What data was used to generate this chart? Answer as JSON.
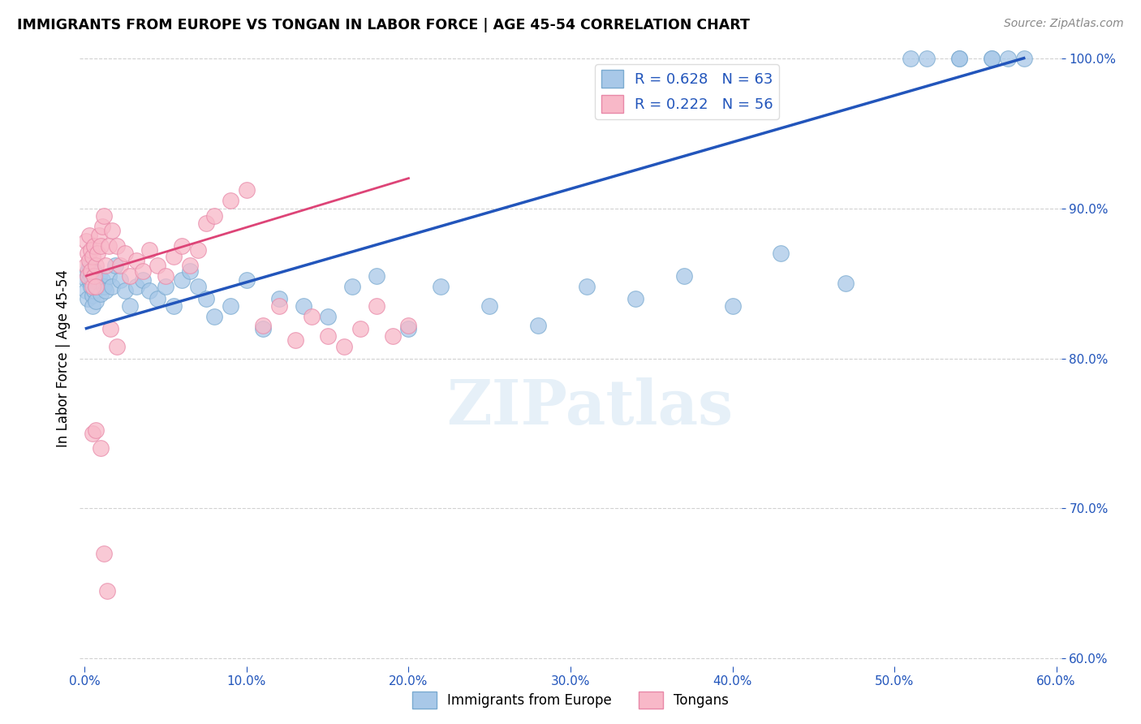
{
  "title": "IMMIGRANTS FROM EUROPE VS TONGAN IN LABOR FORCE | AGE 45-54 CORRELATION CHART",
  "source": "Source: ZipAtlas.com",
  "ylabel": "In Labor Force | Age 45-54",
  "xlim": [
    -0.003,
    0.603
  ],
  "ylim": [
    0.595,
    1.005
  ],
  "xticks": [
    0.0,
    0.1,
    0.2,
    0.3,
    0.4,
    0.5,
    0.6
  ],
  "yticks": [
    0.6,
    0.7,
    0.8,
    0.9,
    1.0
  ],
  "xtick_labels": [
    "0.0%",
    "10.0%",
    "20.0%",
    "30.0%",
    "40.0%",
    "50.0%",
    "60.0%"
  ],
  "ytick_labels": [
    "60.0%",
    "70.0%",
    "80.0%",
    "90.0%",
    "100.0%"
  ],
  "blue_color": "#a8c8e8",
  "blue_edge_color": "#7aaad0",
  "pink_color": "#f8b8c8",
  "pink_edge_color": "#e888a8",
  "blue_line_color": "#2255bb",
  "pink_line_color": "#dd4477",
  "R_blue": 0.628,
  "N_blue": 63,
  "R_pink": 0.222,
  "N_pink": 56,
  "legend_blue_label": "Immigrants from Europe",
  "legend_pink_label": "Tongans",
  "watermark": "ZIPatlas",
  "blue_scatter_x": [
    0.001,
    0.001,
    0.002,
    0.002,
    0.003,
    0.003,
    0.004,
    0.004,
    0.005,
    0.005,
    0.006,
    0.006,
    0.007,
    0.007,
    0.008,
    0.009,
    0.01,
    0.011,
    0.012,
    0.013,
    0.015,
    0.017,
    0.019,
    0.022,
    0.025,
    0.028,
    0.032,
    0.036,
    0.04,
    0.045,
    0.05,
    0.055,
    0.06,
    0.065,
    0.07,
    0.075,
    0.08,
    0.09,
    0.1,
    0.11,
    0.12,
    0.135,
    0.15,
    0.165,
    0.18,
    0.2,
    0.22,
    0.25,
    0.28,
    0.31,
    0.34,
    0.37,
    0.4,
    0.43,
    0.47,
    0.51,
    0.54,
    0.56,
    0.57,
    0.58,
    0.56,
    0.54,
    0.52
  ],
  "blue_scatter_y": [
    0.853,
    0.845,
    0.858,
    0.84,
    0.852,
    0.862,
    0.848,
    0.855,
    0.842,
    0.835,
    0.858,
    0.845,
    0.852,
    0.838,
    0.848,
    0.855,
    0.843,
    0.852,
    0.848,
    0.845,
    0.855,
    0.848,
    0.862,
    0.852,
    0.845,
    0.835,
    0.848,
    0.852,
    0.845,
    0.84,
    0.848,
    0.835,
    0.852,
    0.858,
    0.848,
    0.84,
    0.828,
    0.835,
    0.852,
    0.82,
    0.84,
    0.835,
    0.828,
    0.848,
    0.855,
    0.82,
    0.848,
    0.835,
    0.822,
    0.848,
    0.84,
    0.855,
    0.835,
    0.87,
    0.85,
    1.0,
    1.0,
    1.0,
    1.0,
    1.0,
    1.0,
    1.0,
    1.0
  ],
  "pink_scatter_x": [
    0.001,
    0.001,
    0.002,
    0.002,
    0.003,
    0.003,
    0.004,
    0.004,
    0.005,
    0.005,
    0.006,
    0.006,
    0.007,
    0.007,
    0.008,
    0.009,
    0.01,
    0.011,
    0.012,
    0.013,
    0.015,
    0.017,
    0.02,
    0.022,
    0.025,
    0.028,
    0.032,
    0.036,
    0.04,
    0.045,
    0.05,
    0.055,
    0.06,
    0.065,
    0.07,
    0.075,
    0.08,
    0.09,
    0.1,
    0.11,
    0.12,
    0.13,
    0.14,
    0.15,
    0.16,
    0.17,
    0.18,
    0.19,
    0.2,
    0.005,
    0.007,
    0.01,
    0.012,
    0.014,
    0.016,
    0.02
  ],
  "pink_scatter_y": [
    0.878,
    0.862,
    0.87,
    0.855,
    0.865,
    0.882,
    0.858,
    0.872,
    0.848,
    0.868,
    0.875,
    0.855,
    0.862,
    0.848,
    0.87,
    0.882,
    0.875,
    0.888,
    0.895,
    0.862,
    0.875,
    0.885,
    0.875,
    0.862,
    0.87,
    0.855,
    0.865,
    0.858,
    0.872,
    0.862,
    0.855,
    0.868,
    0.875,
    0.862,
    0.872,
    0.89,
    0.895,
    0.905,
    0.912,
    0.822,
    0.835,
    0.812,
    0.828,
    0.815,
    0.808,
    0.82,
    0.835,
    0.815,
    0.822,
    0.75,
    0.752,
    0.74,
    0.67,
    0.645,
    0.82,
    0.808
  ],
  "blue_line_x0": 0.001,
  "blue_line_x1": 0.58,
  "blue_line_y0": 0.82,
  "blue_line_y1": 1.0,
  "pink_line_x0": 0.001,
  "pink_line_x1": 0.2,
  "pink_line_y0": 0.855,
  "pink_line_y1": 0.92
}
